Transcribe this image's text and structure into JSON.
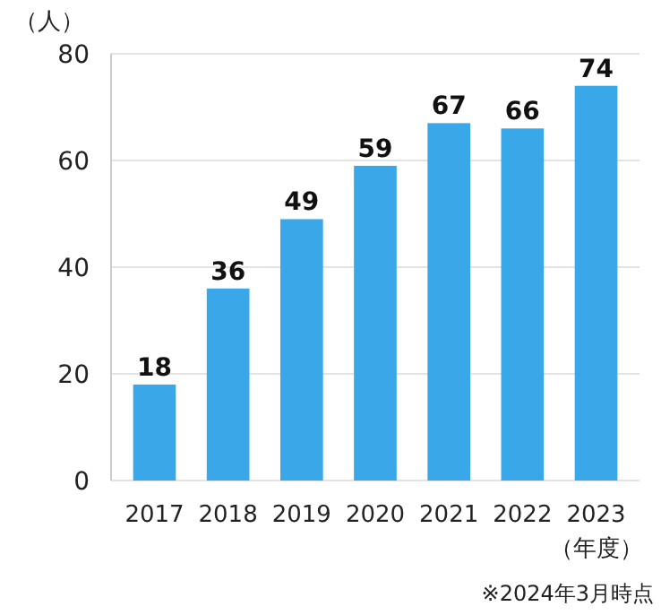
{
  "chart_data": {
    "type": "bar",
    "ylabel": "（人）",
    "xlabel": "（年度）",
    "categories": [
      "2017",
      "2018",
      "2019",
      "2020",
      "2021",
      "2022",
      "2023"
    ],
    "values": [
      18,
      36,
      49,
      59,
      67,
      66,
      74
    ],
    "color": "#3aa8e8",
    "ylim": [
      0,
      80
    ],
    "yticks": [
      0,
      20,
      40,
      60,
      80
    ],
    "grid": "y",
    "data_labels": true,
    "annotations": [
      "※2024年3月時点"
    ]
  }
}
